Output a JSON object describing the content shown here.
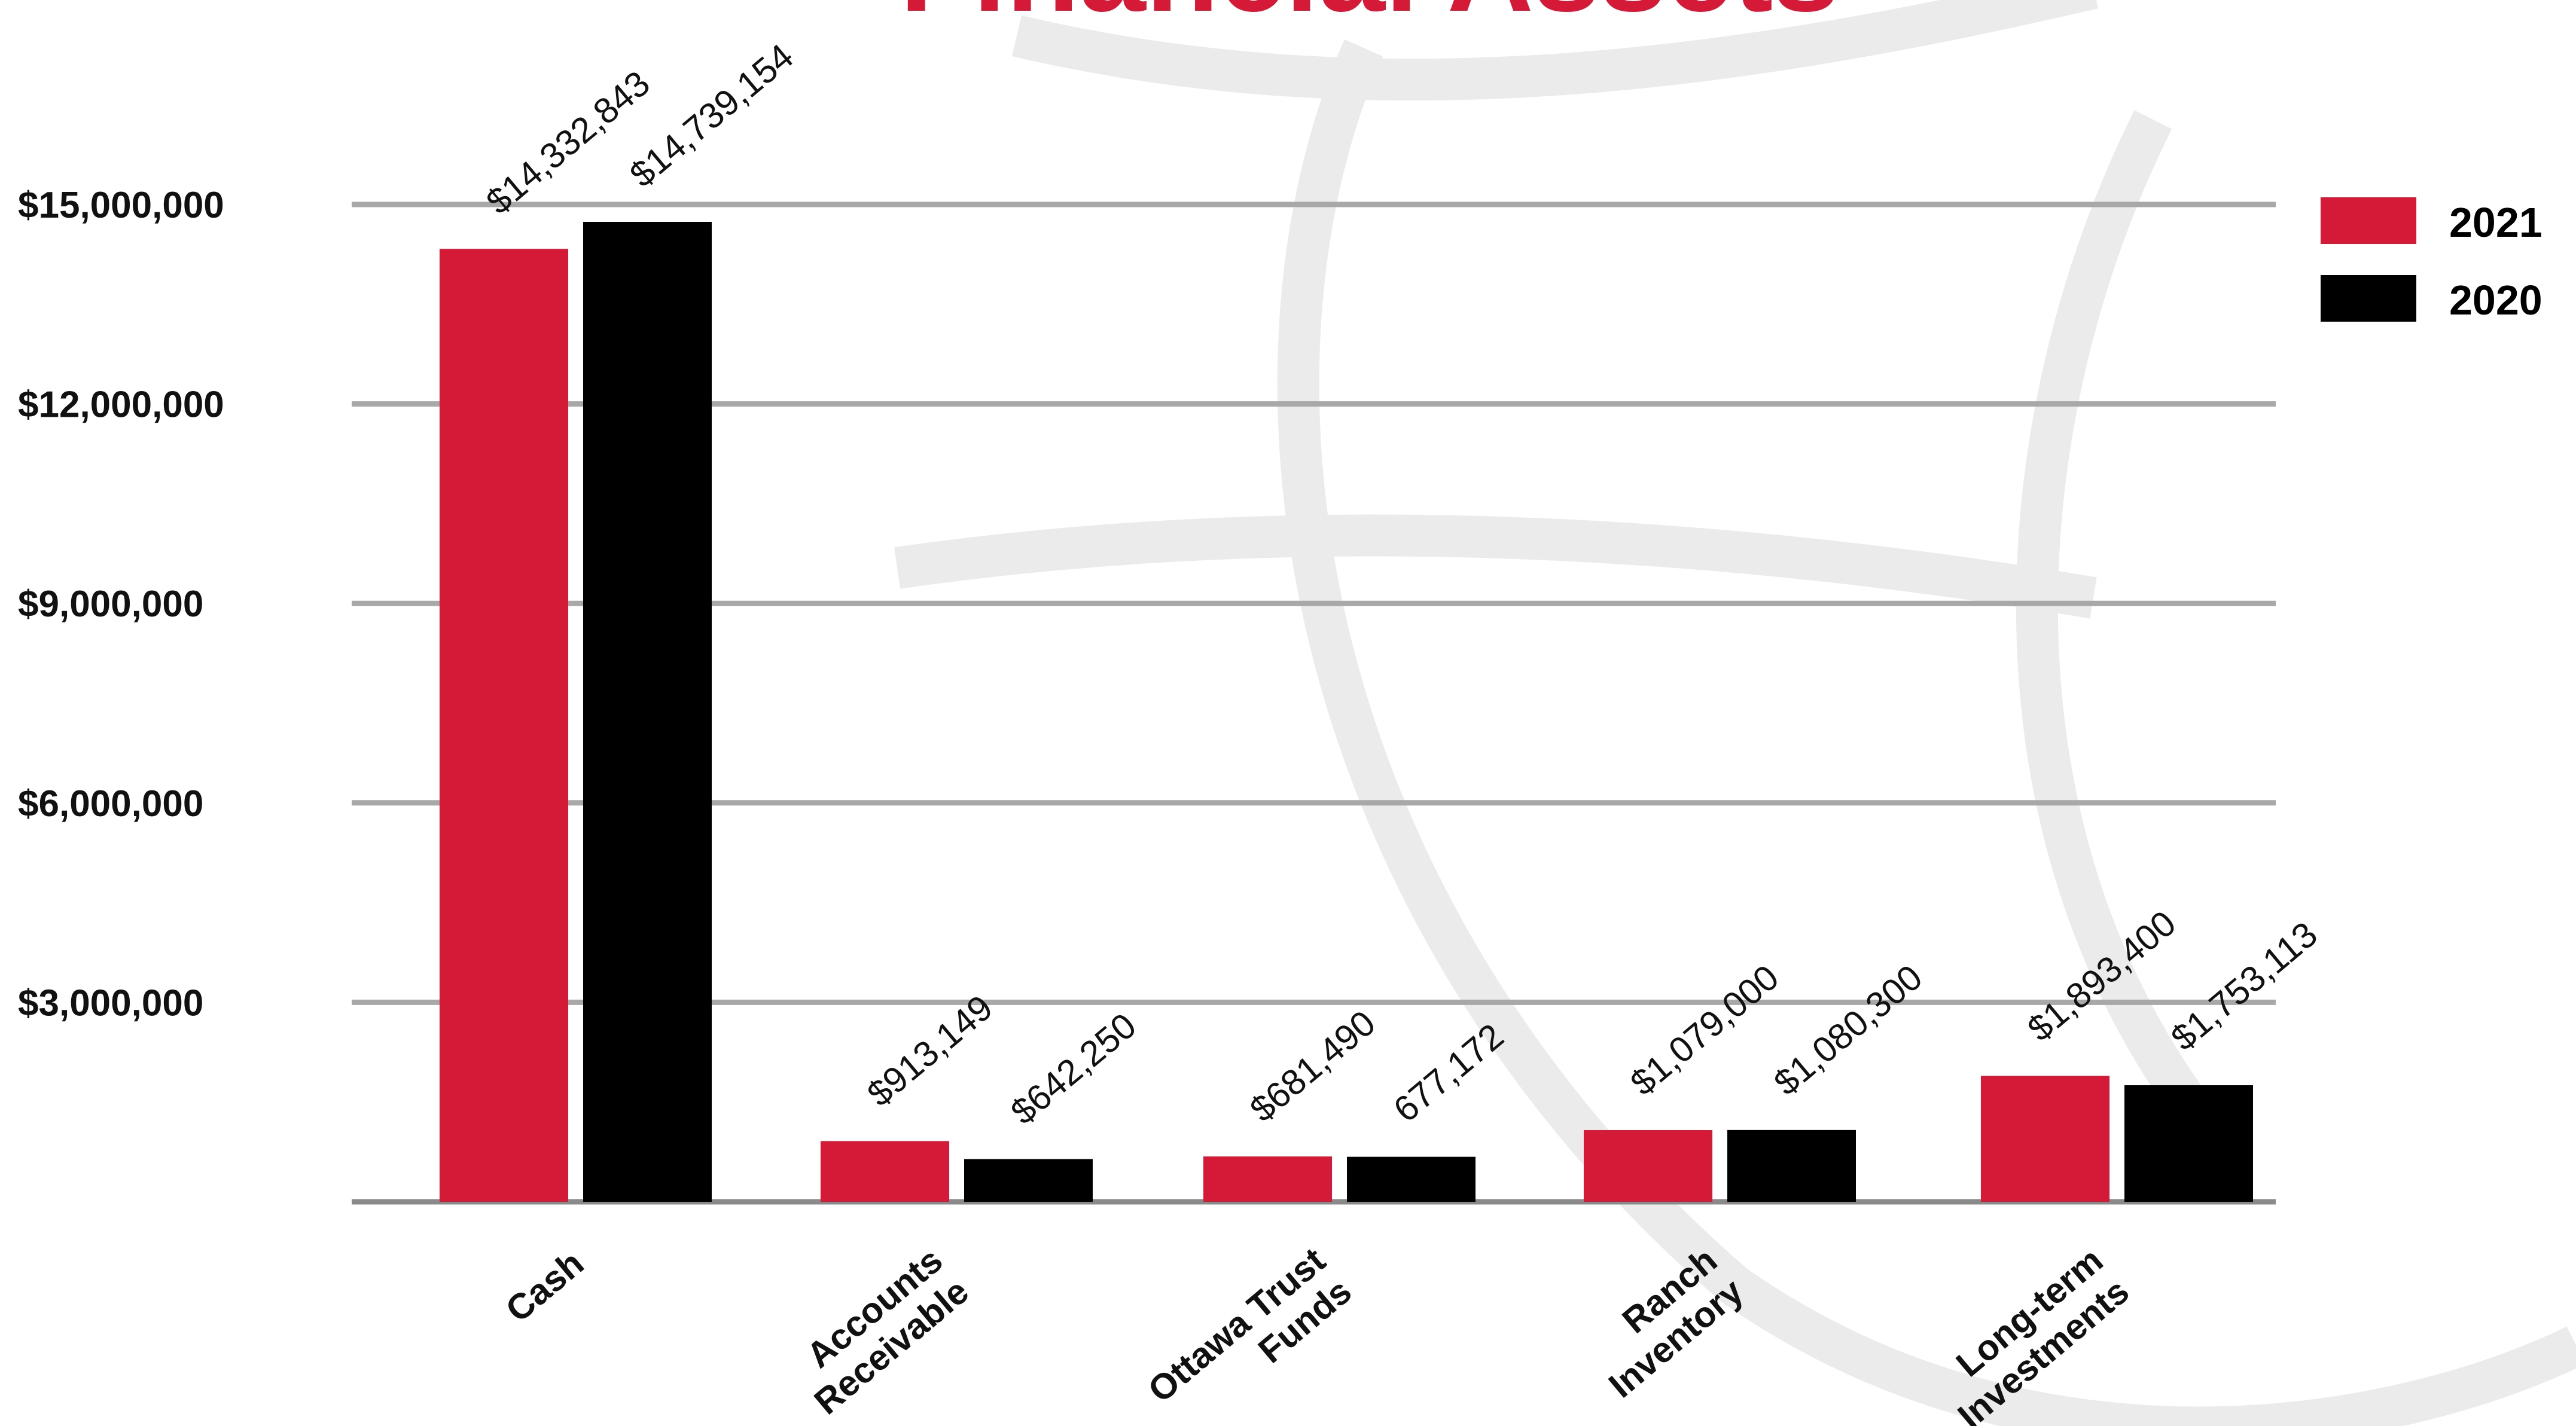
{
  "chart_data": {
    "type": "bar",
    "title": "Financial Assets",
    "categories": [
      [
        "Cash"
      ],
      [
        "Accounts",
        "Receivable"
      ],
      [
        "Ottawa Trust",
        "Funds"
      ],
      [
        "Ranch",
        "Inventory"
      ],
      [
        "Long-term",
        "Investments"
      ]
    ],
    "series": [
      {
        "name": "2021",
        "color": "#d41a36",
        "values": [
          14332843,
          913149,
          681490,
          1079000,
          1893400
        ],
        "labels": [
          "$14,332,843",
          "$913,149",
          "$681,490",
          "$1,079,000",
          "$1,893,400"
        ]
      },
      {
        "name": "2020",
        "color": "#000000",
        "values": [
          14739154,
          642250,
          677172,
          1080300,
          1753113
        ],
        "labels": [
          "$14,739,154",
          "$642,250",
          "677,172",
          "$1,080,300",
          "$1,753,113"
        ]
      }
    ],
    "y_ticks": [
      3000000,
      6000000,
      9000000,
      12000000,
      15000000
    ],
    "y_tick_labels": [
      "$3,000,000",
      "$6,000,000",
      "$9,000,000",
      "$12,000,000",
      "$15,000,000"
    ],
    "ylim": [
      0,
      15000000
    ],
    "grid": true,
    "legend_position": "top-right",
    "xlabel": "",
    "ylabel": ""
  },
  "colors": {
    "title": "#d41a36",
    "gridline": "#a8a8a8",
    "watermark": "#ececec"
  }
}
